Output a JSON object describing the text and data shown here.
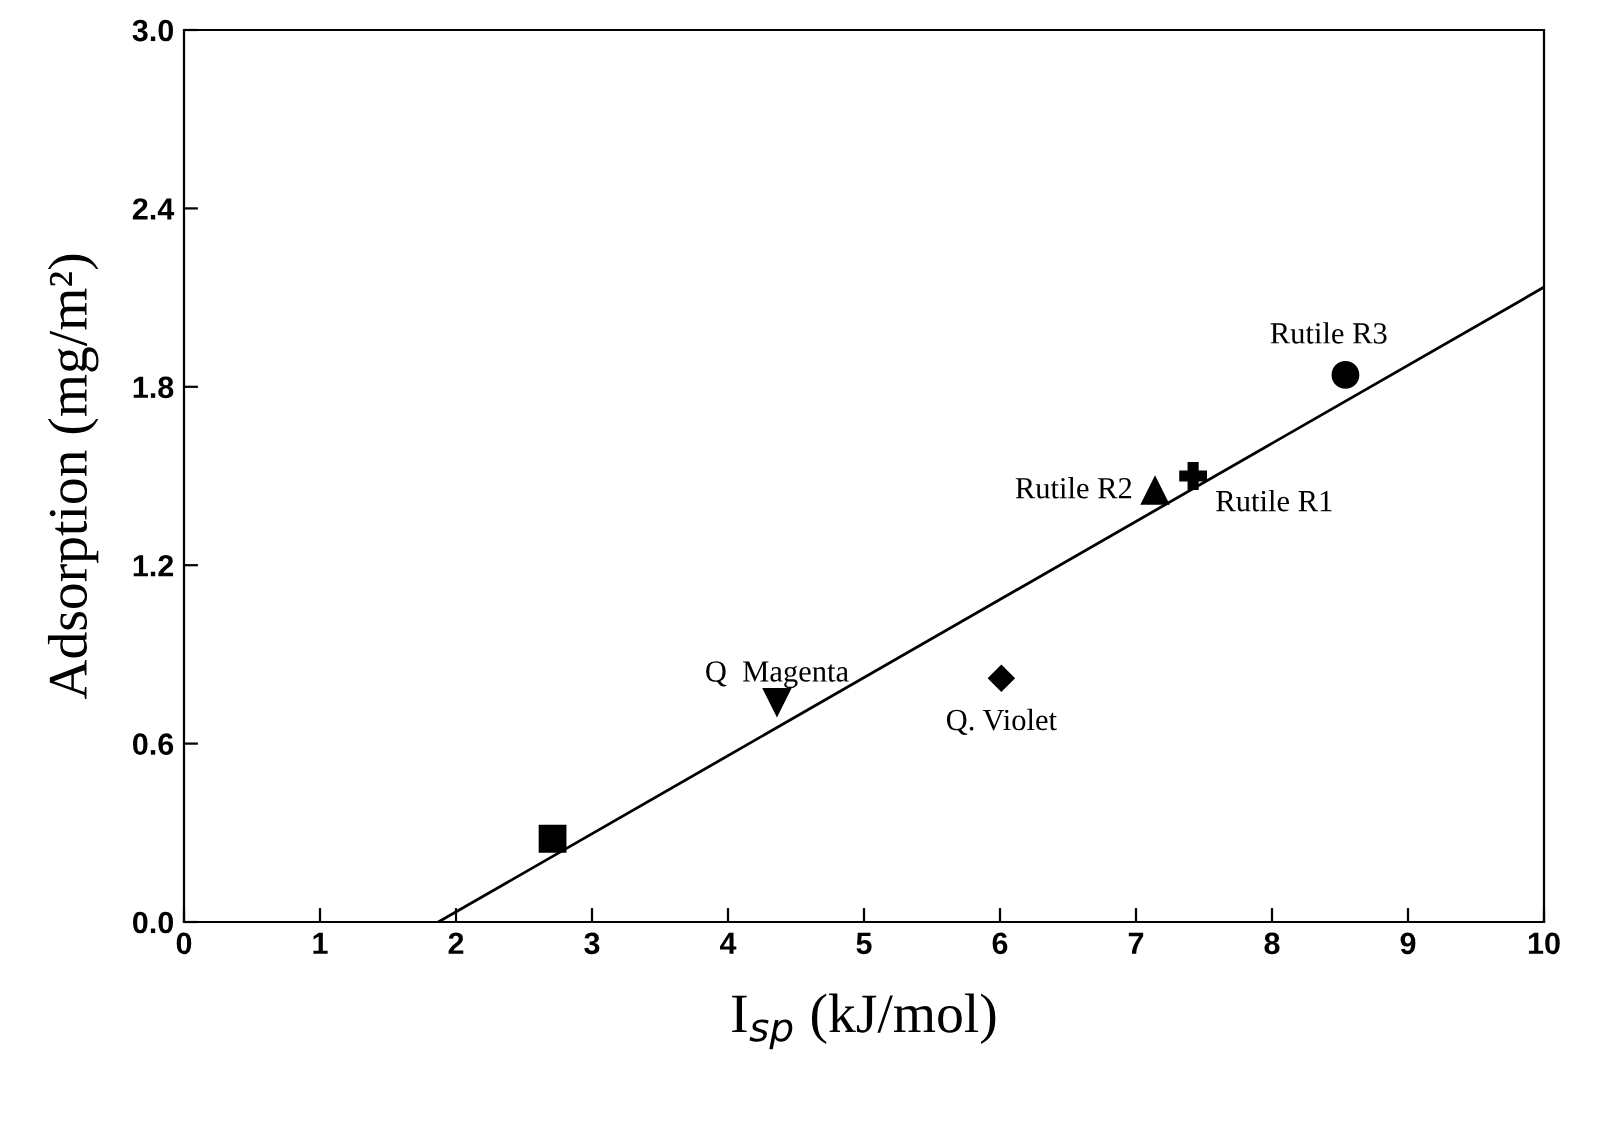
{
  "chart_data": {
    "type": "scatter",
    "xlabel": "I$_{sp}$ (kJ/mol)",
    "ylabel": "Adsorption (mg/m²)",
    "xlim": [
      0,
      10
    ],
    "ylim": [
      0,
      3.0
    ],
    "xticks": [
      0,
      1,
      2,
      3,
      4,
      5,
      6,
      7,
      8,
      9,
      10
    ],
    "yticks": [
      {
        "value": 0,
        "label": "0.0"
      },
      0.6,
      1.2,
      1.8,
      2.4,
      {
        "value": 3.0,
        "label": "3.0"
      }
    ],
    "grid": false,
    "series": [
      {
        "color": "#000000",
        "marker": "square",
        "x": [
          2.71
        ],
        "values": [
          0.28
        ]
      },
      {
        "name": "Q  Magenta",
        "color": "#000000",
        "marker": "triangle_down",
        "x": [
          4.36
        ],
        "values": [
          0.74
        ]
      },
      {
        "name": "Q. Violet",
        "color": "#000000",
        "marker": "diamond",
        "x": [
          6.01
        ],
        "values": [
          0.82
        ]
      },
      {
        "name": "Rutile R2",
        "color": "#000000",
        "marker": "triangle",
        "x": [
          7.14
        ],
        "values": [
          1.45
        ]
      },
      {
        "name": "Rutile R1",
        "color": "#000000",
        "marker": "cross",
        "x": [
          7.42
        ],
        "values": [
          1.5
        ]
      },
      {
        "name": "Rutile R3",
        "color": "#000000",
        "marker": "circle",
        "x": [
          8.54
        ],
        "values": [
          1.84
        ]
      },
      {
        "type": "line",
        "color": "#000000",
        "marker": "none",
        "line_style": "solid",
        "x": [
          1.87,
          10
        ],
        "values": [
          0,
          2.135
        ]
      }
    ]
  }
}
